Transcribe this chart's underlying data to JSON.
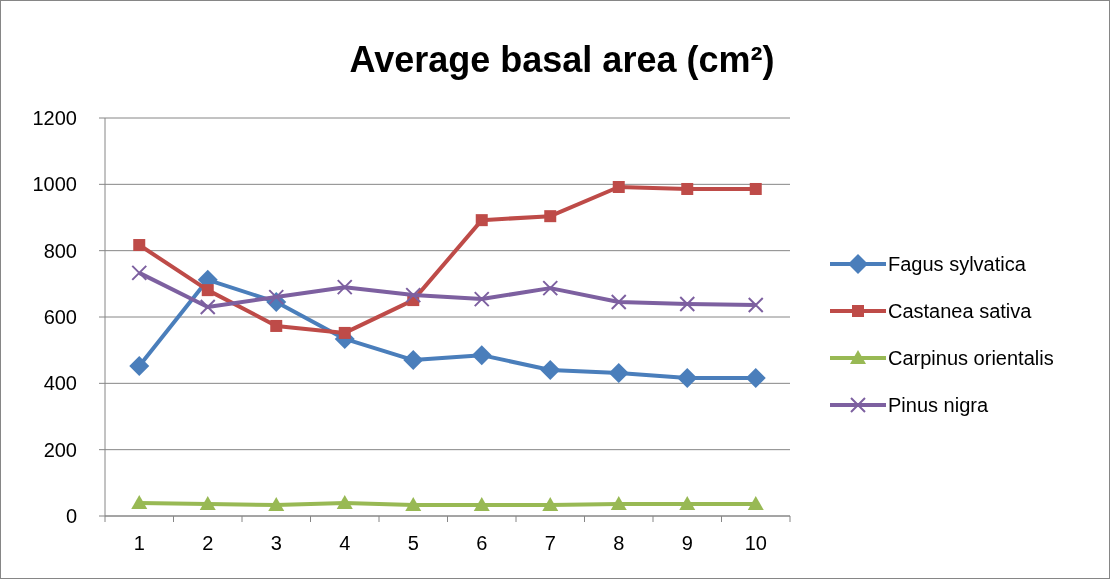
{
  "chart_data": {
    "type": "line",
    "title": "Average basal area (cm²)",
    "categories": [
      "1",
      "2",
      "3",
      "4",
      "5",
      "6",
      "7",
      "8",
      "9",
      "10"
    ],
    "series": [
      {
        "name": "Fagus sylvatica",
        "color": "#4a7ebb",
        "marker": "diamond",
        "values": [
          452,
          712,
          645,
          534,
          470,
          485,
          440,
          431,
          416,
          416
        ]
      },
      {
        "name": "Castanea sativa",
        "color": "#be4b48",
        "marker": "square",
        "values": [
          817,
          681,
          573,
          552,
          651,
          892,
          904,
          992,
          986,
          986
        ]
      },
      {
        "name": "Carpinus orientalis",
        "color": "#98b954",
        "marker": "triangle",
        "values": [
          39,
          36,
          33,
          39,
          33,
          33,
          33,
          36,
          36,
          36
        ]
      },
      {
        "name": "Pinus nigra",
        "color": "#7d60a0",
        "marker": "cross",
        "values": [
          733,
          630,
          660,
          690,
          666,
          654,
          687,
          645,
          639,
          636
        ]
      }
    ],
    "ylim": [
      0,
      1200
    ],
    "yticks": [
      0,
      200,
      400,
      600,
      800,
      1000,
      1200
    ],
    "grid": "y",
    "legend": "right"
  }
}
